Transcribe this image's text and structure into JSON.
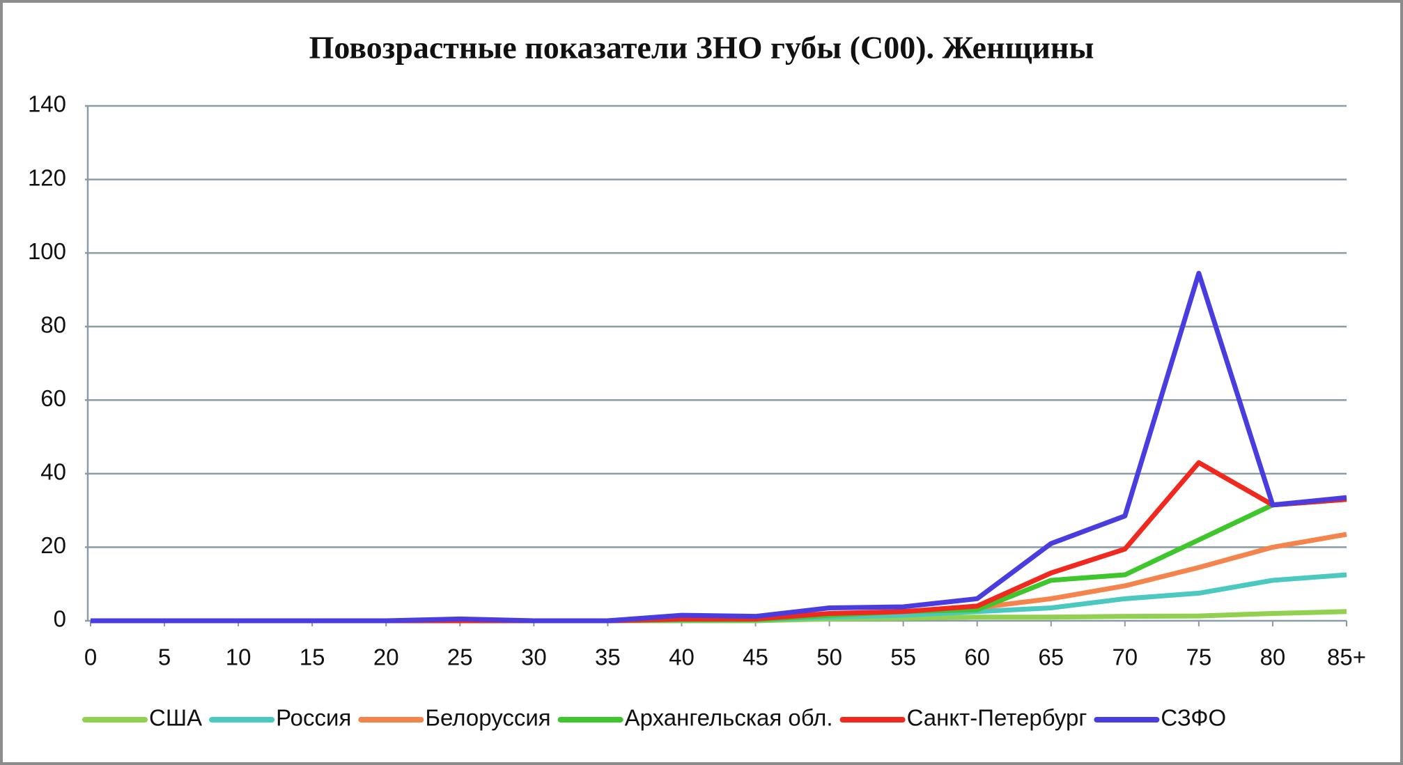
{
  "chart_data": {
    "type": "line",
    "title": "Повозрастные показатели ЗНО губы (С00). Женщины",
    "categories": [
      "0",
      "5",
      "10",
      "15",
      "20",
      "25",
      "30",
      "35",
      "40",
      "45",
      "50",
      "55",
      "60",
      "65",
      "70",
      "75",
      "80",
      "85+"
    ],
    "ylim": [
      0,
      140
    ],
    "yticks": [
      0,
      20,
      40,
      60,
      80,
      100,
      120,
      140
    ],
    "grid": true,
    "legend": "bottom",
    "series": [
      {
        "name": "США",
        "color": "#92d050",
        "values": [
          0,
          0,
          0,
          0,
          0,
          0,
          0,
          0,
          0,
          0,
          0.5,
          0.7,
          1,
          1,
          1.2,
          1.3,
          2,
          2.5
        ]
      },
      {
        "name": "Россия",
        "color": "#4bc8c0",
        "values": [
          0,
          0,
          0,
          0,
          0,
          0,
          0,
          0,
          0.2,
          0.2,
          1,
          1.5,
          2.5,
          3.5,
          6,
          7.5,
          11,
          12.5
        ]
      },
      {
        "name": "Белоруссия",
        "color": "#f4844c",
        "values": [
          0,
          0,
          0,
          0,
          0,
          0,
          0,
          0,
          0.3,
          0.3,
          1.5,
          2.5,
          3.5,
          6,
          9.5,
          14.5,
          20,
          23.5
        ]
      },
      {
        "name": "Архангельская обл.",
        "color": "#3ec62c",
        "values": [
          0,
          0,
          0,
          0,
          0,
          0,
          0,
          0,
          0.3,
          0.3,
          1.5,
          2.5,
          3,
          11,
          12.5,
          22,
          31.5,
          33
        ]
      },
      {
        "name": "Санкт-Петербург",
        "color": "#f0281e",
        "values": [
          0,
          0,
          0,
          0,
          0,
          0,
          0,
          0,
          0.5,
          0.5,
          2,
          2.5,
          4,
          13,
          19.5,
          43,
          31.5,
          33
        ]
      },
      {
        "name": "СЗФО",
        "color": "#4a3de0",
        "values": [
          0,
          0,
          0,
          0,
          0,
          0.5,
          0,
          0,
          1.5,
          1.2,
          3.5,
          3.8,
          6,
          21,
          28.5,
          94.5,
          31.5,
          33.5
        ]
      }
    ]
  }
}
